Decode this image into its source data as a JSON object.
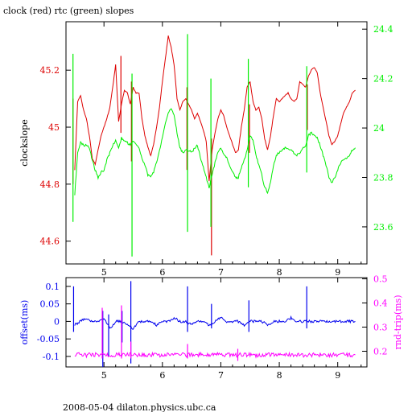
{
  "figure": {
    "title": "clock (red) rtc (green) slopes",
    "footer": "2008-05-04 dilaton.physics.ubc.ca"
  },
  "colors": {
    "clock": "#dd0000",
    "rtc": "#00ee00",
    "offset": "#0000ee",
    "rndtrip": "#ff00ff",
    "axes": "#000000"
  },
  "chart_data": [
    {
      "type": "line",
      "title": "clock (red) rtc (green) slopes",
      "xlabel": "",
      "xlim": [
        4.35,
        9.5
      ],
      "xticks": [
        5,
        6,
        7,
        8,
        9
      ],
      "grid": false,
      "left_axis": {
        "label": "clockslope",
        "ylim": [
          44.52,
          45.37
        ],
        "ticks": [
          44.6,
          44.8,
          45,
          45.2
        ],
        "tick_labels": [
          "44.6",
          "44.8",
          "45",
          "45.2"
        ]
      },
      "right_axis": {
        "label": "",
        "ylim": [
          23.45,
          24.43
        ],
        "ticks": [
          23.6,
          23.8,
          24,
          24.2,
          24.4
        ],
        "tick_labels": [
          "23.6",
          "23.8",
          "24",
          "24.2",
          "24.4"
        ]
      },
      "series": [
        {
          "name": "clock",
          "axis": "left",
          "x": [
            4.5,
            4.55,
            4.6,
            4.65,
            4.7,
            4.75,
            4.8,
            4.85,
            4.9,
            4.95,
            5.0,
            5.05,
            5.1,
            5.15,
            5.2,
            5.25,
            5.3,
            5.35,
            5.4,
            5.45,
            5.5,
            5.55,
            5.6,
            5.65,
            5.7,
            5.75,
            5.8,
            5.85,
            5.9,
            5.95,
            6.0,
            6.05,
            6.1,
            6.15,
            6.2,
            6.25,
            6.3,
            6.35,
            6.4,
            6.45,
            6.5,
            6.55,
            6.6,
            6.65,
            6.7,
            6.75,
            6.8,
            6.85,
            6.9,
            6.95,
            7.0,
            7.05,
            7.1,
            7.15,
            7.2,
            7.25,
            7.3,
            7.35,
            7.4,
            7.45,
            7.5,
            7.55,
            7.6,
            7.65,
            7.7,
            7.75,
            7.8,
            7.85,
            7.9,
            7.95,
            8.0,
            8.05,
            8.1,
            8.15,
            8.2,
            8.25,
            8.3,
            8.35,
            8.4,
            8.45,
            8.5,
            8.55,
            8.6,
            8.65,
            8.7,
            8.75,
            8.8,
            8.85,
            8.9,
            8.95,
            9.0,
            9.05,
            9.1,
            9.15,
            9.2,
            9.25,
            9.3
          ],
          "values": [
            44.85,
            45.09,
            45.11,
            45.06,
            45.03,
            44.97,
            44.89,
            44.87,
            44.92,
            44.97,
            45.0,
            45.03,
            45.07,
            45.14,
            45.22,
            45.02,
            45.08,
            45.13,
            45.12,
            45.08,
            45.14,
            45.12,
            45.12,
            45.03,
            44.97,
            44.93,
            44.9,
            44.94,
            45.0,
            45.07,
            45.16,
            45.24,
            45.32,
            45.28,
            45.22,
            45.1,
            45.06,
            45.09,
            45.1,
            45.08,
            45.06,
            45.03,
            45.05,
            45.02,
            44.99,
            44.95,
            44.81,
            44.92,
            44.98,
            45.03,
            45.06,
            45.04,
            45.0,
            44.97,
            44.94,
            44.91,
            44.92,
            45.0,
            45.06,
            45.14,
            45.16,
            45.09,
            45.06,
            45.07,
            45.03,
            44.96,
            44.92,
            44.97,
            45.04,
            45.1,
            45.09,
            45.1,
            45.11,
            45.12,
            45.1,
            45.09,
            45.1,
            45.16,
            45.15,
            45.14,
            45.18,
            45.2,
            45.21,
            45.19,
            45.12,
            45.07,
            45.02,
            44.97,
            44.94,
            44.95,
            44.97,
            45.01,
            45.05,
            45.07,
            45.09,
            45.12,
            45.13
          ],
          "spikes": [
            {
              "x": 4.47,
              "min": 44.8,
              "max": 45.1
            },
            {
              "x": 5.29,
              "min": 44.98,
              "max": 45.25
            },
            {
              "x": 5.47,
              "min": 44.88,
              "max": 45.16
            },
            {
              "x": 6.42,
              "min": 44.85,
              "max": 45.14
            },
            {
              "x": 6.84,
              "min": 44.55,
              "max": 44.96
            },
            {
              "x": 7.49,
              "min": 44.91,
              "max": 45.08
            },
            {
              "x": 8.48,
              "min": 44.99,
              "max": 45.15
            }
          ]
        },
        {
          "name": "rtc",
          "axis": "right",
          "x": [
            4.5,
            4.55,
            4.6,
            4.65,
            4.7,
            4.75,
            4.8,
            4.85,
            4.9,
            4.95,
            5.0,
            5.05,
            5.1,
            5.15,
            5.2,
            5.25,
            5.3,
            5.35,
            5.4,
            5.45,
            5.5,
            5.55,
            5.6,
            5.65,
            5.7,
            5.75,
            5.8,
            5.85,
            5.9,
            5.95,
            6.0,
            6.05,
            6.1,
            6.15,
            6.2,
            6.25,
            6.3,
            6.35,
            6.4,
            6.45,
            6.5,
            6.55,
            6.6,
            6.65,
            6.7,
            6.75,
            6.8,
            6.85,
            6.9,
            6.95,
            7.0,
            7.05,
            7.1,
            7.15,
            7.2,
            7.25,
            7.3,
            7.35,
            7.4,
            7.45,
            7.5,
            7.55,
            7.6,
            7.65,
            7.7,
            7.75,
            7.8,
            7.85,
            7.9,
            7.95,
            8.0,
            8.05,
            8.1,
            8.15,
            8.2,
            8.25,
            8.3,
            8.35,
            8.4,
            8.45,
            8.5,
            8.55,
            8.6,
            8.65,
            8.7,
            8.75,
            8.8,
            8.85,
            8.9,
            8.95,
            9.0,
            9.05,
            9.1,
            9.15,
            9.2,
            9.25,
            9.3
          ],
          "values": [
            23.73,
            23.9,
            23.94,
            23.93,
            23.93,
            23.92,
            23.87,
            23.83,
            23.8,
            23.82,
            23.83,
            23.87,
            23.9,
            23.93,
            23.95,
            23.92,
            23.96,
            23.95,
            23.94,
            23.93,
            23.95,
            23.93,
            23.92,
            23.88,
            23.85,
            23.81,
            23.8,
            23.82,
            23.86,
            23.91,
            23.96,
            24.02,
            24.06,
            24.08,
            24.05,
            23.98,
            23.92,
            23.9,
            23.91,
            23.91,
            23.9,
            23.92,
            23.93,
            23.88,
            23.84,
            23.8,
            23.76,
            23.81,
            23.86,
            23.9,
            23.92,
            23.89,
            23.88,
            23.85,
            23.82,
            23.8,
            23.8,
            23.84,
            23.87,
            23.91,
            23.97,
            23.95,
            23.89,
            23.85,
            23.81,
            23.76,
            23.74,
            23.78,
            23.85,
            23.89,
            23.9,
            23.91,
            23.92,
            23.92,
            23.91,
            23.9,
            23.89,
            23.9,
            23.92,
            23.93,
            23.97,
            23.98,
            23.97,
            23.96,
            23.93,
            23.89,
            23.85,
            23.8,
            23.78,
            23.8,
            23.83,
            23.86,
            23.87,
            23.88,
            23.89,
            23.91,
            23.92
          ],
          "spikes": [
            {
              "x": 4.47,
              "min": 23.62,
              "max": 24.3
            },
            {
              "x": 5.48,
              "min": 23.48,
              "max": 24.22
            },
            {
              "x": 6.43,
              "min": 23.58,
              "max": 24.38
            },
            {
              "x": 6.83,
              "min": 23.6,
              "max": 24.2
            },
            {
              "x": 7.47,
              "min": 23.76,
              "max": 24.28
            },
            {
              "x": 8.47,
              "min": 23.82,
              "max": 24.25
            }
          ]
        }
      ]
    },
    {
      "type": "line",
      "xlabel": "",
      "xlim": [
        4.35,
        9.5
      ],
      "xticks": [
        5,
        6,
        7,
        8,
        9
      ],
      "grid": false,
      "left_axis": {
        "label": "offset(ms)",
        "ylim": [
          -0.13,
          0.125
        ],
        "ticks": [
          -0.1,
          -0.05,
          0,
          0.05,
          0.1
        ],
        "tick_labels": [
          "-0.1",
          "-0.05",
          "0",
          "0.05",
          "0.1"
        ]
      },
      "right_axis": {
        "label": "rnd-trip(ms)",
        "ylim": [
          0.135,
          0.505
        ],
        "ticks": [
          0.2,
          0.3,
          0.4,
          0.5
        ],
        "tick_labels": [
          "0.2",
          "0.3",
          "0.4",
          "0.5"
        ]
      },
      "series": [
        {
          "name": "offset",
          "axis": "left",
          "x": [
            4.5,
            4.6,
            4.7,
            4.8,
            4.9,
            5.0,
            5.1,
            5.2,
            5.3,
            5.4,
            5.5,
            5.6,
            5.7,
            5.8,
            5.9,
            6.0,
            6.1,
            6.2,
            6.3,
            6.4,
            6.5,
            6.6,
            6.7,
            6.8,
            6.9,
            7.0,
            7.1,
            7.2,
            7.3,
            7.4,
            7.5,
            7.6,
            7.7,
            7.8,
            7.9,
            8.0,
            8.1,
            8.2,
            8.3,
            8.4,
            8.5,
            8.6,
            8.7,
            8.8,
            8.9,
            9.0,
            9.1,
            9.2,
            9.3
          ],
          "values": [
            -0.01,
            0.0,
            0.01,
            0.0,
            0.0,
            0.01,
            -0.02,
            0.0,
            0.0,
            -0.01,
            -0.02,
            0.0,
            0.0,
            0.0,
            -0.01,
            0.0,
            0.0,
            0.01,
            0.0,
            0.0,
            -0.01,
            0.0,
            0.0,
            -0.01,
            0.0,
            0.01,
            0.0,
            0.0,
            0.0,
            -0.01,
            0.0,
            0.0,
            0.0,
            -0.01,
            0.0,
            0.0,
            0.0,
            0.01,
            0.0,
            0.0,
            0.0,
            0.0,
            0.0,
            0.0,
            0.0,
            0.0,
            0.0,
            0.0,
            0.0
          ],
          "spikes": [
            {
              "x": 4.48,
              "min": -0.03,
              "max": 0.1
            },
            {
              "x": 4.98,
              "min": -0.13,
              "max": 0.03
            },
            {
              "x": 5.08,
              "min": -0.1,
              "max": 0.02
            },
            {
              "x": 5.31,
              "min": -0.06,
              "max": 0.03
            },
            {
              "x": 5.46,
              "min": -0.12,
              "max": 0.115
            },
            {
              "x": 6.43,
              "min": -0.03,
              "max": 0.1
            },
            {
              "x": 6.84,
              "min": -0.02,
              "max": 0.05
            },
            {
              "x": 7.48,
              "min": -0.03,
              "max": 0.06
            },
            {
              "x": 8.47,
              "min": -0.02,
              "max": 0.1
            }
          ]
        },
        {
          "name": "rnd-trip",
          "axis": "right",
          "x": [
            4.5,
            4.6,
            4.7,
            4.8,
            4.9,
            5.0,
            5.1,
            5.2,
            5.3,
            5.4,
            5.5,
            5.6,
            5.7,
            5.8,
            5.9,
            6.0,
            6.1,
            6.2,
            6.3,
            6.4,
            6.5,
            6.6,
            6.7,
            6.8,
            6.9,
            7.0,
            7.1,
            7.2,
            7.3,
            7.4,
            7.5,
            7.6,
            7.7,
            7.8,
            7.9,
            8.0,
            8.1,
            8.2,
            8.3,
            8.4,
            8.5,
            8.6,
            8.7,
            8.8,
            8.9,
            9.0,
            9.1,
            9.2,
            9.3
          ],
          "values": [
            0.185,
            0.186,
            0.184,
            0.185,
            0.186,
            0.185,
            0.184,
            0.186,
            0.185,
            0.185,
            0.187,
            0.184,
            0.185,
            0.186,
            0.185,
            0.184,
            0.185,
            0.186,
            0.185,
            0.184,
            0.185,
            0.186,
            0.185,
            0.184,
            0.185,
            0.186,
            0.185,
            0.184,
            0.185,
            0.186,
            0.185,
            0.184,
            0.185,
            0.186,
            0.185,
            0.184,
            0.185,
            0.186,
            0.185,
            0.184,
            0.185,
            0.186,
            0.185,
            0.184,
            0.185,
            0.186,
            0.185,
            0.184,
            0.185
          ],
          "spikes": [
            {
              "x": 4.97,
              "min": 0.17,
              "max": 0.38
            },
            {
              "x": 5.3,
              "min": 0.17,
              "max": 0.39
            },
            {
              "x": 5.46,
              "min": 0.17,
              "max": 0.24
            },
            {
              "x": 6.43,
              "min": 0.17,
              "max": 0.23
            },
            {
              "x": 7.29,
              "min": 0.16,
              "max": 0.21
            }
          ]
        }
      ]
    }
  ]
}
